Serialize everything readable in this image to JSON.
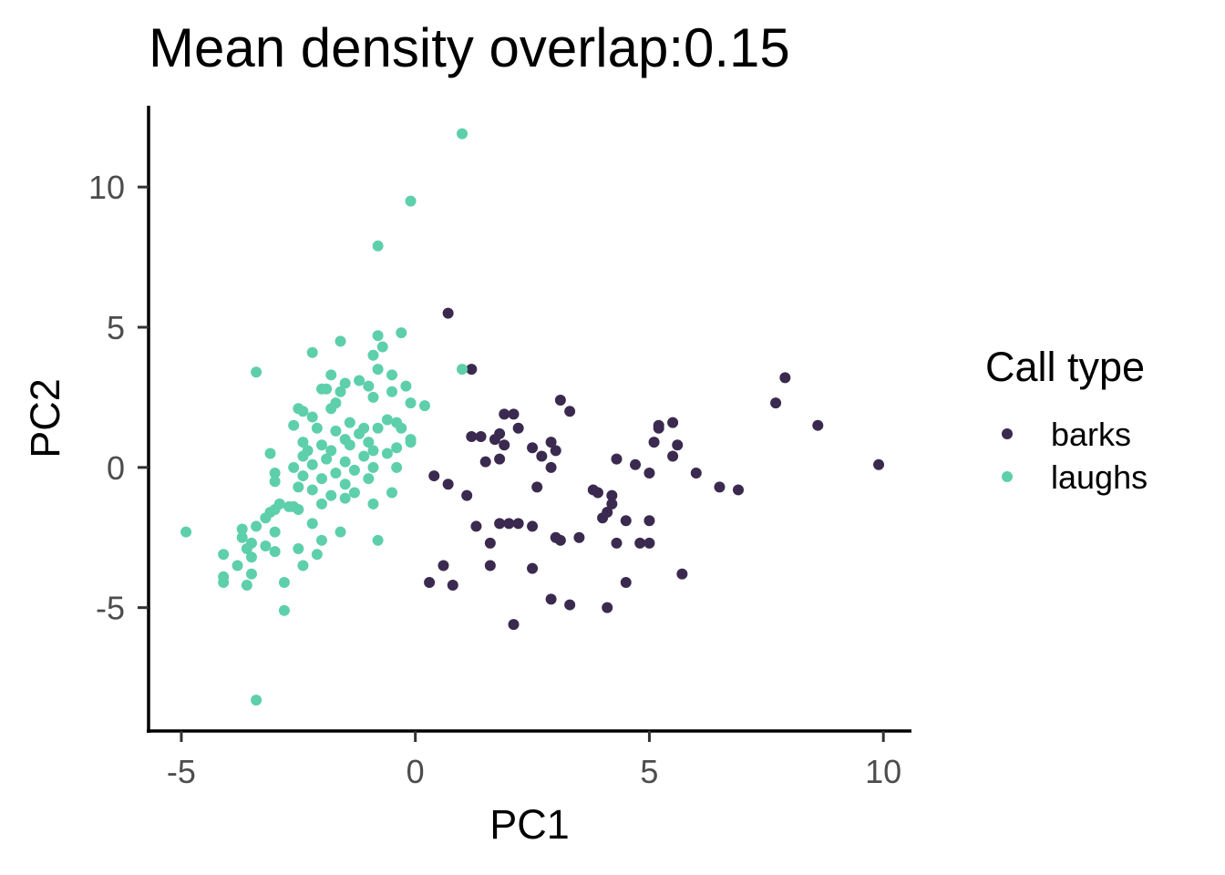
{
  "chart_data": {
    "type": "scatter",
    "title": "Mean density overlap:0.15",
    "xlabel": "PC1",
    "ylabel": "PC2",
    "xlim": [
      -5.7,
      10.6
    ],
    "ylim": [
      -9.4,
      12.9
    ],
    "x_ticks": [
      -5,
      0,
      5,
      10
    ],
    "x_tick_labels": [
      "-5",
      "0",
      "5",
      "10"
    ],
    "y_ticks": [
      -5,
      0,
      5,
      10
    ],
    "y_tick_labels": [
      "-5",
      "0",
      "5",
      "10"
    ],
    "grid": false,
    "legend": {
      "title": "Call type",
      "placement": "right"
    },
    "series": [
      {
        "name": "barks",
        "color": "#3b2a4f",
        "points": [
          [
            0.7,
            5.5
          ],
          [
            1.2,
            3.5
          ],
          [
            0.4,
            -0.3
          ],
          [
            0.7,
            -0.6
          ],
          [
            1.1,
            -1.0
          ],
          [
            0.3,
            -4.1
          ],
          [
            0.6,
            -3.5
          ],
          [
            0.8,
            -4.2
          ],
          [
            1.2,
            1.1
          ],
          [
            1.4,
            1.1
          ],
          [
            1.5,
            0.2
          ],
          [
            1.3,
            -2.1
          ],
          [
            1.6,
            -2.7
          ],
          [
            1.6,
            -3.5
          ],
          [
            1.7,
            1.0
          ],
          [
            1.8,
            0.3
          ],
          [
            1.8,
            1.2
          ],
          [
            1.9,
            0.8
          ],
          [
            1.9,
            1.9
          ],
          [
            1.8,
            -2.0
          ],
          [
            2.0,
            -2.0
          ],
          [
            2.1,
            1.9
          ],
          [
            2.2,
            1.4
          ],
          [
            2.2,
            -2.0
          ],
          [
            2.1,
            -5.6
          ],
          [
            2.5,
            -2.1
          ],
          [
            2.5,
            -3.6
          ],
          [
            2.5,
            0.7
          ],
          [
            2.6,
            -0.7
          ],
          [
            2.7,
            0.4
          ],
          [
            2.9,
            0.0
          ],
          [
            2.9,
            -4.7
          ],
          [
            2.9,
            0.9
          ],
          [
            3.0,
            0.6
          ],
          [
            3.0,
            -2.5
          ],
          [
            3.1,
            -2.6
          ],
          [
            3.1,
            2.4
          ],
          [
            3.3,
            2.0
          ],
          [
            3.3,
            -4.9
          ],
          [
            3.5,
            -2.5
          ],
          [
            3.8,
            -0.8
          ],
          [
            3.9,
            -0.9
          ],
          [
            4.0,
            -1.8
          ],
          [
            4.1,
            -1.6
          ],
          [
            4.1,
            -5.0
          ],
          [
            4.2,
            -1.0
          ],
          [
            4.2,
            -1.3
          ],
          [
            4.3,
            -2.7
          ],
          [
            4.3,
            0.3
          ],
          [
            4.5,
            -1.9
          ],
          [
            4.5,
            -4.1
          ],
          [
            4.7,
            0.1
          ],
          [
            4.8,
            -2.7
          ],
          [
            5.0,
            -0.2
          ],
          [
            5.0,
            -1.9
          ],
          [
            5.0,
            -2.7
          ],
          [
            5.1,
            0.9
          ],
          [
            5.2,
            1.4
          ],
          [
            5.2,
            1.5
          ],
          [
            5.5,
            1.6
          ],
          [
            5.5,
            0.4
          ],
          [
            5.6,
            0.8
          ],
          [
            5.7,
            -3.8
          ],
          [
            6.0,
            -0.2
          ],
          [
            6.5,
            -0.7
          ],
          [
            6.9,
            -0.8
          ],
          [
            7.7,
            2.3
          ],
          [
            7.9,
            3.2
          ],
          [
            8.6,
            1.5
          ],
          [
            9.9,
            0.1
          ]
        ]
      },
      {
        "name": "laughs",
        "color": "#5ecfab",
        "points": [
          [
            1.0,
            11.9
          ],
          [
            -0.1,
            9.5
          ],
          [
            -0.8,
            7.9
          ],
          [
            -0.3,
            4.8
          ],
          [
            -0.8,
            4.7
          ],
          [
            -1.6,
            4.5
          ],
          [
            -2.2,
            4.1
          ],
          [
            -0.9,
            4.0
          ],
          [
            -0.7,
            4.3
          ],
          [
            -3.4,
            3.4
          ],
          [
            1.0,
            3.5
          ],
          [
            -0.8,
            3.5
          ],
          [
            -1.8,
            3.3
          ],
          [
            -1.5,
            3.0
          ],
          [
            -1.2,
            3.1
          ],
          [
            -0.5,
            3.3
          ],
          [
            -0.5,
            2.7
          ],
          [
            -0.9,
            2.5
          ],
          [
            -1.7,
            2.3
          ],
          [
            -1.9,
            2.8
          ],
          [
            -1.6,
            2.7
          ],
          [
            -1.0,
            2.9
          ],
          [
            -0.2,
            2.9
          ],
          [
            -2.0,
            2.8
          ],
          [
            -0.1,
            2.3
          ],
          [
            0.2,
            2.2
          ],
          [
            -2.5,
            2.1
          ],
          [
            -2.4,
            2.0
          ],
          [
            -2.2,
            1.8
          ],
          [
            -1.8,
            2.1
          ],
          [
            -1.4,
            1.6
          ],
          [
            -1.2,
            1.2
          ],
          [
            -0.8,
            1.4
          ],
          [
            -0.6,
            1.7
          ],
          [
            -0.4,
            1.6
          ],
          [
            -0.3,
            1.4
          ],
          [
            -1.7,
            1.3
          ],
          [
            -1.1,
            1.4
          ],
          [
            -2.6,
            1.5
          ],
          [
            -2.1,
            1.4
          ],
          [
            -1.5,
            1.0
          ],
          [
            -1.0,
            0.9
          ],
          [
            -2.4,
            0.9
          ],
          [
            -2.0,
            0.8
          ],
          [
            -2.3,
            0.6
          ],
          [
            -1.8,
            0.6
          ],
          [
            -1.4,
            0.8
          ],
          [
            -0.9,
            0.6
          ],
          [
            -0.4,
            0.7
          ],
          [
            -0.1,
            1.0
          ],
          [
            -3.1,
            0.5
          ],
          [
            -2.4,
            0.4
          ],
          [
            -1.9,
            0.3
          ],
          [
            -1.5,
            0.2
          ],
          [
            -1.1,
            0.4
          ],
          [
            -0.6,
            0.5
          ],
          [
            -0.1,
            0.9
          ],
          [
            -2.6,
            0.0
          ],
          [
            -2.2,
            0.1
          ],
          [
            -1.7,
            -0.2
          ],
          [
            -1.3,
            -0.1
          ],
          [
            -0.9,
            0.0
          ],
          [
            -0.4,
            0.0
          ],
          [
            -3.0,
            -0.2
          ],
          [
            -2.4,
            -0.3
          ],
          [
            -2.0,
            -0.4
          ],
          [
            -1.5,
            -0.6
          ],
          [
            -1.0,
            -0.4
          ],
          [
            -3.0,
            -0.5
          ],
          [
            -2.5,
            -0.7
          ],
          [
            -2.2,
            -0.8
          ],
          [
            -1.8,
            -1.0
          ],
          [
            -1.3,
            -0.9
          ],
          [
            -0.5,
            -0.9
          ],
          [
            -2.9,
            -1.3
          ],
          [
            -2.6,
            -1.4
          ],
          [
            -2.0,
            -1.3
          ],
          [
            -1.5,
            -1.1
          ],
          [
            -0.9,
            -1.3
          ],
          [
            -3.1,
            -1.6
          ],
          [
            -2.7,
            -1.4
          ],
          [
            -2.5,
            -1.5
          ],
          [
            -3.0,
            -1.5
          ],
          [
            -3.2,
            -1.8
          ],
          [
            -3.4,
            -2.1
          ],
          [
            -3.7,
            -2.2
          ],
          [
            -3.0,
            -2.3
          ],
          [
            -2.2,
            -2.0
          ],
          [
            -1.6,
            -2.3
          ],
          [
            -3.7,
            -2.5
          ],
          [
            -3.6,
            -2.9
          ],
          [
            -3.2,
            -2.8
          ],
          [
            -3.5,
            -2.7
          ],
          [
            -3.5,
            -3.2
          ],
          [
            -3.0,
            -3.0
          ],
          [
            -2.5,
            -2.9
          ],
          [
            -2.0,
            -2.6
          ],
          [
            -2.1,
            -3.1
          ],
          [
            -0.8,
            -2.6
          ],
          [
            -4.1,
            -3.1
          ],
          [
            -3.8,
            -3.5
          ],
          [
            -3.5,
            -3.8
          ],
          [
            -2.4,
            -3.5
          ],
          [
            -4.1,
            -3.9
          ],
          [
            -4.1,
            -4.1
          ],
          [
            -3.6,
            -4.2
          ],
          [
            -2.8,
            -4.1
          ],
          [
            -2.8,
            -5.1
          ],
          [
            -3.4,
            -8.3
          ],
          [
            -4.9,
            -2.3
          ]
        ]
      }
    ]
  }
}
